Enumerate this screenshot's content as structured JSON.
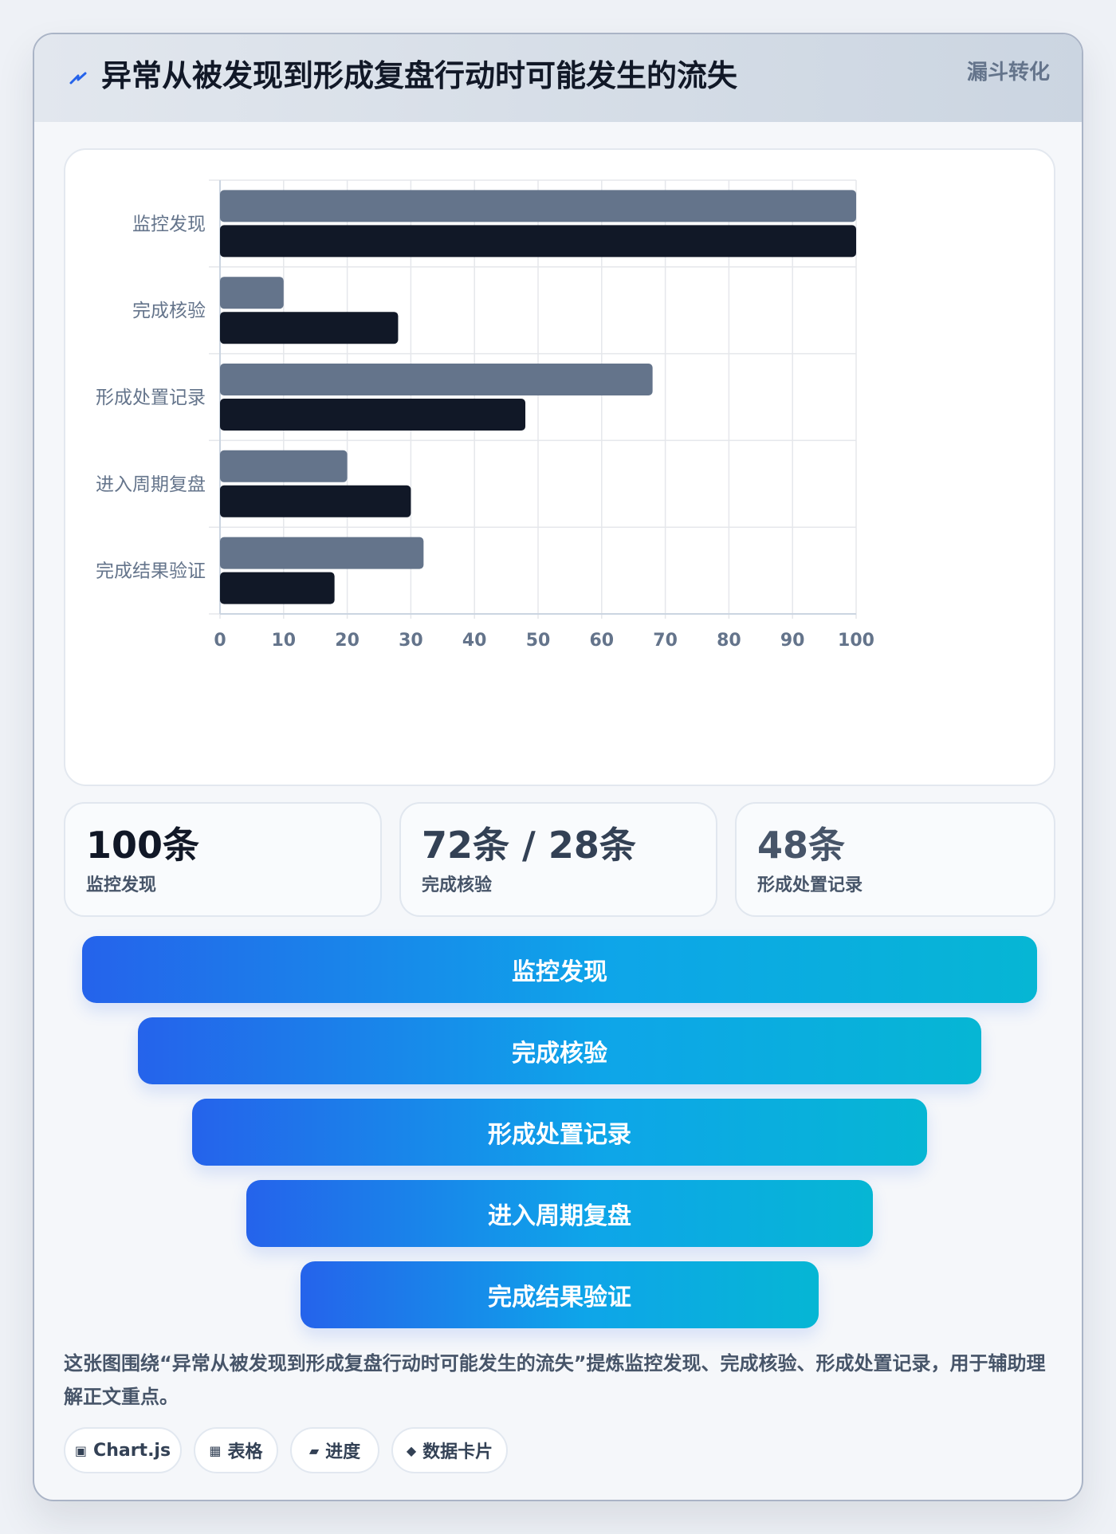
{
  "header": {
    "title": "异常从被发现到形成复盘行动时可能发生的流失",
    "tag": "漏斗转化",
    "icon": "lightning-icon"
  },
  "chart_data": {
    "type": "bar",
    "orientation": "horizontal",
    "categories": [
      "监控发现",
      "完成核验",
      "形成处置记录",
      "进入周期复盘",
      "完成结果验证"
    ],
    "series": [
      {
        "values": [
          100,
          10,
          68,
          20,
          32
        ],
        "color": "#64748b"
      },
      {
        "values": [
          100,
          28,
          48,
          30,
          18
        ],
        "color": "#111827"
      }
    ],
    "xlim": [
      0,
      100
    ],
    "xticks": [
      0,
      10,
      20,
      30,
      40,
      50,
      60,
      70,
      80,
      90,
      100
    ],
    "grid": true,
    "legend": "none"
  },
  "stats": [
    {
      "value": "100条",
      "label": "监控发现",
      "color": "#111827"
    },
    {
      "value": "72条 / 28条",
      "label": "完成核验",
      "color": "#334155"
    },
    {
      "value": "48条",
      "label": "形成处置记录",
      "color": "#475569"
    }
  ],
  "funnel": [
    {
      "label": "监控发现"
    },
    {
      "label": "完成核验"
    },
    {
      "label": "形成处置记录"
    },
    {
      "label": "进入周期复盘"
    },
    {
      "label": "完成结果验证"
    }
  ],
  "description": "这张图围绕“异常从被发现到形成复盘行动时可能发生的流失”提炼监控发现、完成核验、形成处置记录，用于辅助理解正文重点。",
  "chips": [
    {
      "icon": "▣",
      "label": "Chart.js"
    },
    {
      "icon": "▦",
      "label": "表格"
    },
    {
      "icon": "▰",
      "label": "进度"
    },
    {
      "icon": "◆",
      "label": "数据卡片"
    }
  ]
}
